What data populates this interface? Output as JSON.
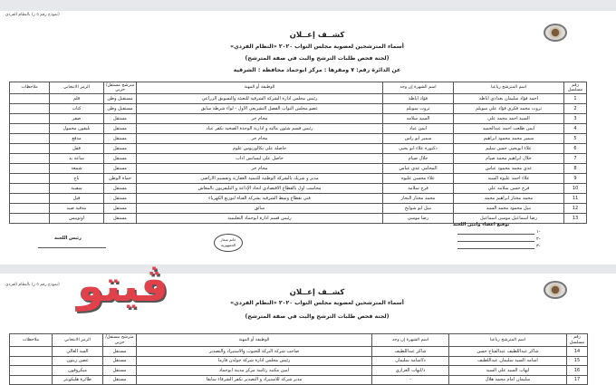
{
  "form_label": "(نموذج رقم ٥ ز) بالنظام الفردي",
  "header": {
    "title": "كشــف إعــلان",
    "subtitle": "أسماء المترشحين لعضوية مجلس النواب ٢٠٢٠ «النظام الفردي»",
    "committee": "(لجنة فحص طلبات الترشح والبت في صفة المترشح)",
    "district": "عن الدائرة رقم: ٧ ومقرها : مركز ابوحماد محافظة : الشرقية"
  },
  "columns": [
    "رقم مسلسل",
    "اسم المترشح رباعيا",
    "اسم الشهرة إن وجد",
    "الوظيفة أو المهنة",
    "مترشح مستقل/حزبي",
    "الرمز الانتخابي",
    "ملاحظات"
  ],
  "rows_page1": [
    {
      "n": "1",
      "name": "احمد فؤاد سليمان بغدادي اباظه",
      "fame": "فؤاد اباظة",
      "job": "رئيس مجلس ادارة الشركة الشرقية للتعبئة والتسويق الزراعي",
      "party": "مستقبل وطن",
      "symbol": "قلم",
      "notes": ""
    },
    {
      "n": "2",
      "name": "ثروت محمد فكري فؤاد علي سويلم",
      "fame": "ثروت سويلم",
      "job": "عضو مجلس النواب الفصل التشريعي الاول - لواء شرطة سابق",
      "party": "مستقبل وطن",
      "symbol": "كتاب",
      "notes": ""
    },
    {
      "n": "3",
      "name": "السيد احمد محمد علي",
      "fame": "السيد سلامه",
      "job": "محام حر",
      "party": "مستقل",
      "symbol": "صقر",
      "notes": ""
    },
    {
      "n": "4",
      "name": "ايمن طلعت احمد عبدالحميد",
      "fame": "ايمن عياد",
      "job": "رئيس قسم شئون ماليه و ادارية الوحدة الصحية بكفر عياد",
      "party": "مستقل",
      "symbol": "تليفون محمول",
      "notes": ""
    },
    {
      "n": "5",
      "name": "سمير محمد محمود ابراهيم",
      "fame": "سمير ابو راس",
      "job": "محام حر",
      "party": "مستقل",
      "symbol": "مدفع",
      "notes": ""
    },
    {
      "n": "6",
      "name": "علاء ابويحيى حسن سليم",
      "fame": "دكتورة علاء ابو يحيى",
      "job": "حاصلة على بكالوريوس علوم",
      "party": "مستقل",
      "symbol": "قفل",
      "notes": ""
    },
    {
      "n": "7",
      "name": "جلال ابراهيم محمد صيام",
      "fame": "جلال صيام",
      "job": "حاصل على ليسانس اداب",
      "party": "مستقل",
      "symbol": "ساعة يد",
      "notes": ""
    },
    {
      "n": "8",
      "name": "عدي محمد محمود عباس",
      "fame": "المحامي عدي عباس",
      "job": "محام حر",
      "party": "مستقل",
      "symbol": "شمعة",
      "notes": ""
    },
    {
      "n": "9",
      "name": "علاء احمد عليوه السيد",
      "fame": "علاء محسن عليوه",
      "job": "مدير و شريك بالشركة الوطنية للتنمية العقارية وتقسيم الاراضي",
      "party": "حماة الوطن",
      "symbol": "تاج",
      "notes": ""
    },
    {
      "n": "10",
      "name": "فرج حسن سلامه علي",
      "fame": "فرج سلامة",
      "job": "محاسب اول بالقطاع الاقتصادي اتحاد الإذاعة و التليفزيون بالمعاش",
      "party": "مستقل",
      "symbol": "سفينة",
      "notes": ""
    },
    {
      "n": "11",
      "name": "محمد مختار ابراهيم محمد",
      "fame": "محمد مختار النجار",
      "job": "فني بقطاع وسط الشرقية بشركة القناة لتوزيع الكهرباء",
      "party": "مستقل",
      "symbol": "فيل",
      "notes": ""
    },
    {
      "n": "12",
      "name": "نبيل محمود محمد السيد",
      "fame": "نبيل ابو شوايخ",
      "job": "سائق",
      "party": "مستقل",
      "symbol": "بندقية صيد",
      "notes": ""
    },
    {
      "n": "13",
      "name": "رضا اسماعيل موسى اسماعيل",
      "fame": "رضا موسى",
      "job": "رئيس قسم ادارة ابوحماد التعليمية",
      "party": "مستقل",
      "symbol": "اوتوبيس",
      "notes": ""
    }
  ],
  "signatures": {
    "members_label": "توقيع اعضاء وامين اللجنة",
    "lines": [
      "-١",
      "-٢",
      "-٣"
    ],
    "stamp": "خاتم شعار الجمهورية",
    "chair_label": "رئيس اللجنة"
  },
  "watermark": "ڤيتو",
  "rows_page2": [
    {
      "n": "14",
      "name": "شاكر عبداللطيف عبدالفتاح حسن",
      "fame": "شاكر عبداللطيف",
      "job": "صاحب شركة البركة للحبوب والاستيراد والتصدير",
      "party": "مستقل",
      "symbol": "السد العالي",
      "notes": ""
    },
    {
      "n": "15",
      "name": "اسامه السيد سليمان عبداللطيف",
      "fame": "د/اسامة سليمان",
      "job": "رئيس مجلس ادارة شركة جولدن فارما",
      "party": "مستقل",
      "symbol": "غصن زيتون",
      "notes": ""
    },
    {
      "n": "16",
      "name": "ايهاب السيد علي السيد",
      "fame": "د/ايهاب العزازي",
      "job": "امين مكتبه رئاسة مركز مدينة ابوحماد",
      "party": "مستقل",
      "symbol": "ميكروفون",
      "notes": ""
    },
    {
      "n": "17",
      "name": "سليمان امام محمد هلال",
      "fame": "-",
      "job": "مدير شركة للاستيراد و التصدير بكفر الشرفاء سابقا",
      "party": "مستقل",
      "symbol": "طائرة هليكوبتر",
      "notes": ""
    }
  ]
}
